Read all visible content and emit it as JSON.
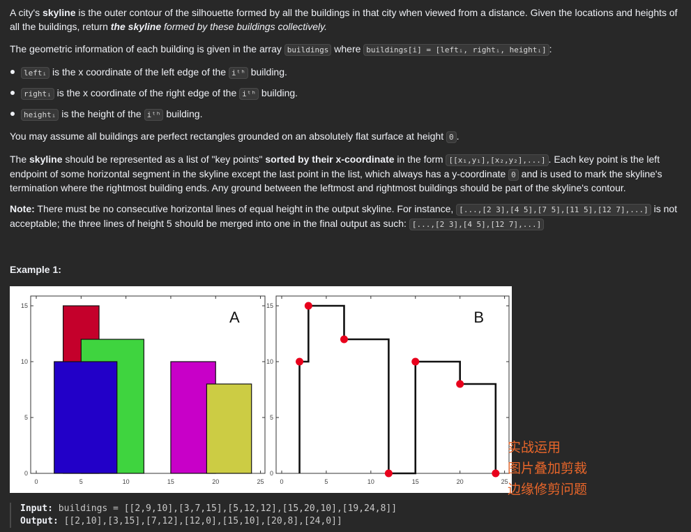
{
  "problem": {
    "intro_prefix": "A city's ",
    "skyline_word": "skyline",
    "intro_middle": " is the outer contour of the silhouette formed by all the buildings in that city when viewed from a distance. Given the locations and heights of all the buildings, return ",
    "the_skyline_bold_italic": "the skyline",
    "intro_suffix": " formed by these buildings collectively.",
    "geo_prefix": "The geometric information of each building is given in the array ",
    "geo_code1": "buildings",
    "geo_mid": " where ",
    "geo_code2": "buildings[i] = [leftᵢ, rightᵢ, heightᵢ]",
    "geo_suffix": ":",
    "bullets": [
      {
        "code": "leftᵢ",
        "text_a": " is the x coordinate of the left edge of the ",
        "code2": "iᵗʰ",
        "text_b": " building."
      },
      {
        "code": "rightᵢ",
        "text_a": " is the x coordinate of the right edge of the ",
        "code2": "iᵗʰ",
        "text_b": " building."
      },
      {
        "code": "heightᵢ",
        "text_a": " is the height of the ",
        "code2": "iᵗʰ",
        "text_b": " building."
      }
    ],
    "assume_prefix": "You may assume all buildings are perfect rectangles grounded on an absolutely flat surface at height ",
    "assume_code": "0",
    "assume_suffix": ".",
    "rep_prefix": "The ",
    "rep_skyline": "skyline",
    "rep_a": " should be represented as a list of \"key points\" ",
    "rep_sorted": "sorted by their x-coordinate",
    "rep_b": " in the form ",
    "rep_code": "[[x₁,y₁],[x₂,y₂],...]",
    "rep_c": ". Each key point is the left endpoint of some horizontal segment in the skyline except the last point in the list, which always has a y-coordinate ",
    "rep_code0": "0",
    "rep_d": " and is used to mark the skyline's termination where the rightmost building ends. Any ground between the leftmost and rightmost buildings should be part of the skyline's contour.",
    "note_label": "Note:",
    "note_a": " There must be no consecutive horizontal lines of equal height in the output skyline. For instance, ",
    "note_code1": "[...,[2 3],[4 5],[7 5],[11 5],[12 7],...]",
    "note_b": " is not acceptable; the three lines of height 5 should be merged into one in the final output as such: ",
    "note_code2": "[...,[2 3],[4 5],[12 7],...]"
  },
  "example": {
    "title": "Example 1:",
    "input_label": "Input:",
    "input_value": " buildings = [[2,9,10],[3,7,15],[5,12,12],[15,20,10],[19,24,8]]",
    "output_label": "Output:",
    "output_value": " [[2,10],[3,15],[7,12],[12,0],[15,10],[20,8],[24,0]]"
  },
  "figure": {
    "panel_a_label": "A",
    "panel_b_label": "B",
    "x_ticks": [
      "0",
      "5",
      "10",
      "15",
      "20",
      "25"
    ],
    "y_ticks": [
      "0",
      "5",
      "10",
      "15"
    ],
    "buildings": [
      {
        "left": 3,
        "right": 7,
        "height": 15,
        "color": "#c4002b"
      },
      {
        "left": 5,
        "right": 12,
        "height": 12,
        "color": "#3fd43f"
      },
      {
        "left": 2,
        "right": 9,
        "height": 10,
        "color": "#2200c8"
      },
      {
        "left": 15,
        "right": 20,
        "height": 10,
        "color": "#c800c8"
      },
      {
        "left": 19,
        "right": 24,
        "height": 8,
        "color": "#cccc44"
      }
    ],
    "key_points": [
      [
        2,
        10
      ],
      [
        3,
        15
      ],
      [
        7,
        12
      ],
      [
        12,
        0
      ],
      [
        15,
        10
      ],
      [
        20,
        8
      ],
      [
        24,
        0
      ]
    ],
    "dot_color": "#e8001c"
  },
  "overlay": {
    "line1": "实战运用",
    "line2": "图片叠加剪裁",
    "line3": "边缘修剪问题"
  }
}
